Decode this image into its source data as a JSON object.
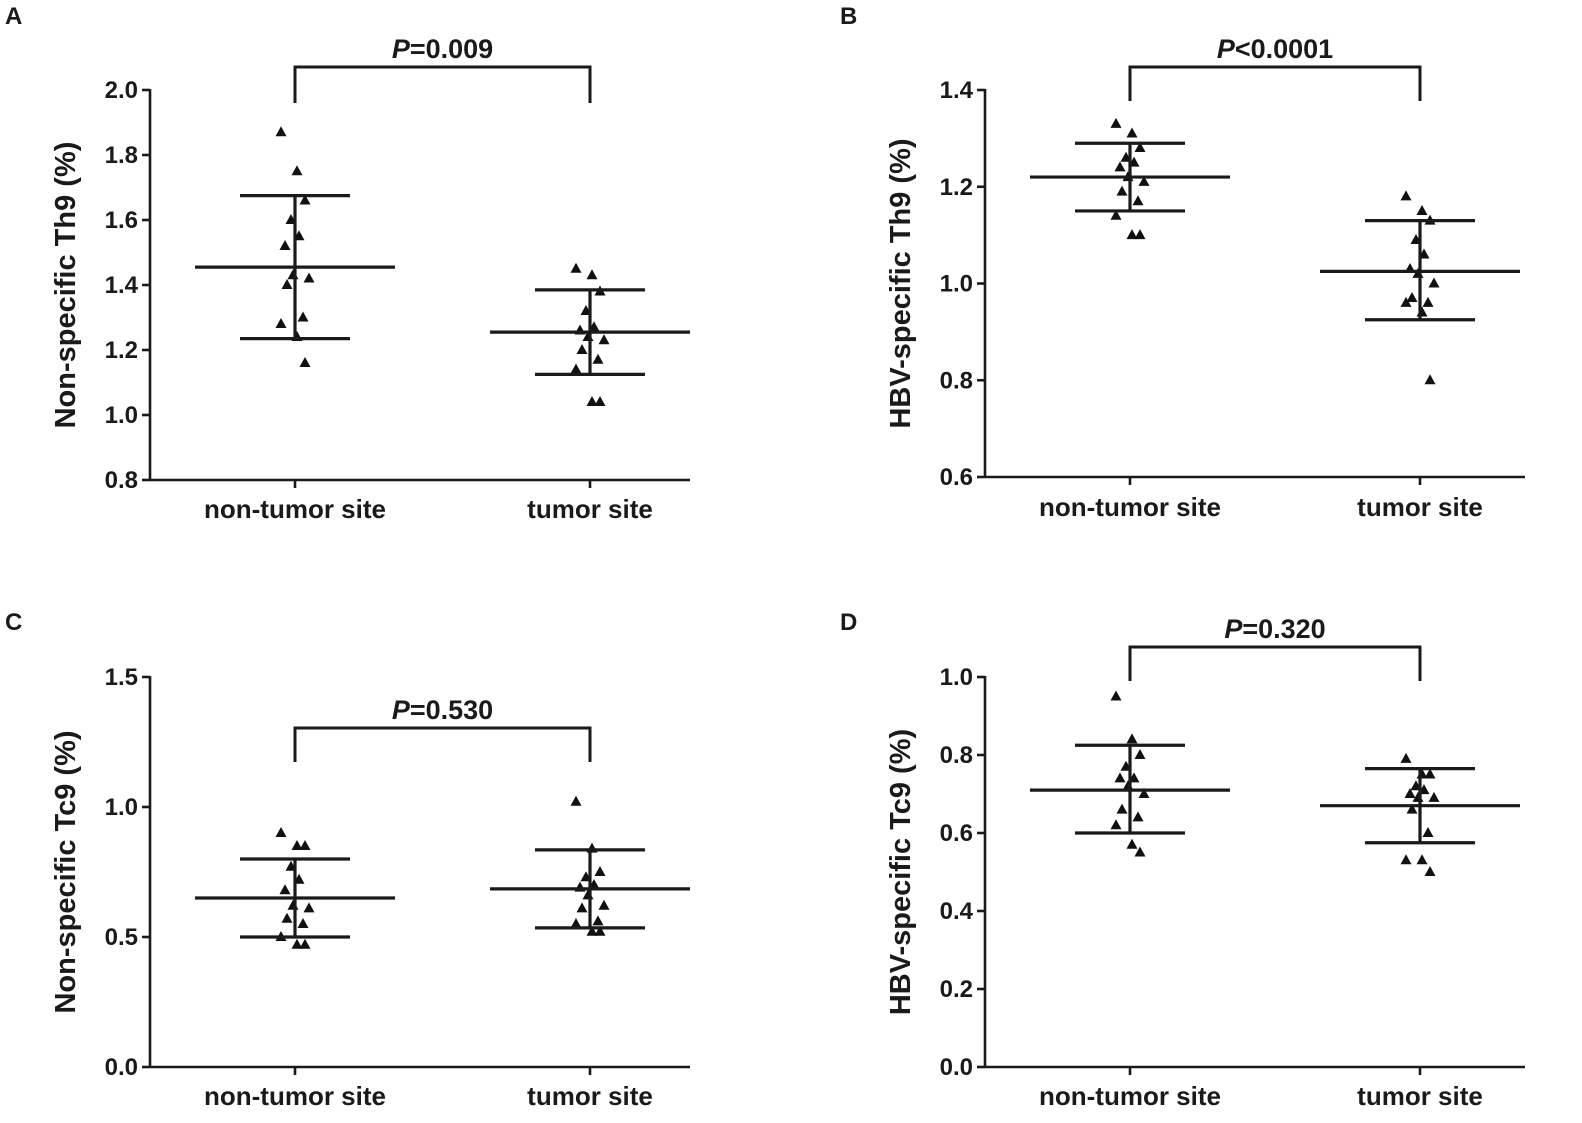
{
  "chart_data": [
    {
      "type": "scatter",
      "panel": "A",
      "ylabel": "Non-specific Th9 (%)",
      "categories": [
        "non-tumor site",
        "tumor site"
      ],
      "ylim": [
        0.8,
        2.0
      ],
      "yticks": [
        0.8,
        1.0,
        1.2,
        1.4,
        1.6,
        1.8,
        2.0
      ],
      "ytick_labels": [
        "0.8",
        "1.0",
        "1.2",
        "1.4",
        "1.6",
        "1.8",
        "2.0"
      ],
      "series": [
        {
          "name": "non-tumor site",
          "mean": 1.455,
          "sd_low": 1.235,
          "sd_high": 1.675,
          "values": [
            1.87,
            1.75,
            1.66,
            1.6,
            1.55,
            1.52,
            1.43,
            1.42,
            1.4,
            1.3,
            1.28,
            1.24,
            1.16
          ]
        },
        {
          "name": "tumor site",
          "mean": 1.255,
          "sd_low": 1.125,
          "sd_high": 1.385,
          "values": [
            1.45,
            1.43,
            1.38,
            1.32,
            1.27,
            1.26,
            1.24,
            1.23,
            1.2,
            1.17,
            1.14,
            1.04,
            1.04
          ]
        }
      ],
      "p_prefix": "P",
      "p_text": "=0.009"
    },
    {
      "type": "scatter",
      "panel": "B",
      "ylabel": "HBV-specific Th9 (%)",
      "categories": [
        "non-tumor site",
        "tumor site"
      ],
      "ylim": [
        0.6,
        1.4
      ],
      "yticks": [
        0.6,
        0.8,
        1.0,
        1.2,
        1.4
      ],
      "ytick_labels": [
        "0.6",
        "0.8",
        "1.0",
        "1.2",
        "1.4"
      ],
      "series": [
        {
          "name": "non-tumor site",
          "mean": 1.22,
          "sd_low": 1.15,
          "sd_high": 1.29,
          "values": [
            1.33,
            1.31,
            1.28,
            1.26,
            1.25,
            1.24,
            1.22,
            1.21,
            1.19,
            1.17,
            1.14,
            1.1,
            1.1
          ]
        },
        {
          "name": "tumor site",
          "mean": 1.025,
          "sd_low": 0.925,
          "sd_high": 1.13,
          "values": [
            1.18,
            1.15,
            1.13,
            1.09,
            1.06,
            1.03,
            1.02,
            1.0,
            0.97,
            0.96,
            0.96,
            0.94,
            0.8
          ]
        }
      ],
      "p_prefix": "P",
      "p_text": "<0.0001"
    },
    {
      "type": "scatter",
      "panel": "C",
      "ylabel": "Non-specific Tc9 (%)",
      "categories": [
        "non-tumor site",
        "tumor site"
      ],
      "ylim": [
        0.0,
        1.5
      ],
      "yticks": [
        0.0,
        0.5,
        1.0,
        1.5
      ],
      "ytick_labels": [
        "0.0",
        "0.5",
        "1.0",
        "1.5"
      ],
      "series": [
        {
          "name": "non-tumor site",
          "mean": 0.65,
          "sd_low": 0.5,
          "sd_high": 0.8,
          "values": [
            0.9,
            0.85,
            0.85,
            0.77,
            0.72,
            0.68,
            0.62,
            0.61,
            0.57,
            0.55,
            0.5,
            0.47,
            0.47
          ]
        },
        {
          "name": "tumor site",
          "mean": 0.685,
          "sd_low": 0.535,
          "sd_high": 0.835,
          "values": [
            1.02,
            0.84,
            0.75,
            0.73,
            0.7,
            0.69,
            0.66,
            0.62,
            0.61,
            0.56,
            0.55,
            0.52,
            0.52
          ]
        }
      ],
      "p_prefix": "P",
      "p_text": "=0.530"
    },
    {
      "type": "scatter",
      "panel": "D",
      "ylabel": "HBV-specific Tc9 (%)",
      "categories": [
        "non-tumor site",
        "tumor site"
      ],
      "ylim": [
        0.0,
        1.0
      ],
      "yticks": [
        0.0,
        0.2,
        0.4,
        0.6,
        0.8,
        1.0
      ],
      "ytick_labels": [
        "0.0",
        "0.2",
        "0.4",
        "0.6",
        "0.8",
        "1.0"
      ],
      "series": [
        {
          "name": "non-tumor site",
          "mean": 0.71,
          "sd_low": 0.6,
          "sd_high": 0.825,
          "values": [
            0.95,
            0.84,
            0.8,
            0.77,
            0.74,
            0.74,
            0.72,
            0.7,
            0.66,
            0.64,
            0.62,
            0.57,
            0.55
          ]
        },
        {
          "name": "tumor site",
          "mean": 0.67,
          "sd_low": 0.575,
          "sd_high": 0.765,
          "values": [
            0.79,
            0.75,
            0.75,
            0.72,
            0.71,
            0.7,
            0.69,
            0.69,
            0.66,
            0.6,
            0.53,
            0.53,
            0.5
          ]
        }
      ],
      "p_prefix": "P",
      "p_text": "=0.320"
    }
  ]
}
